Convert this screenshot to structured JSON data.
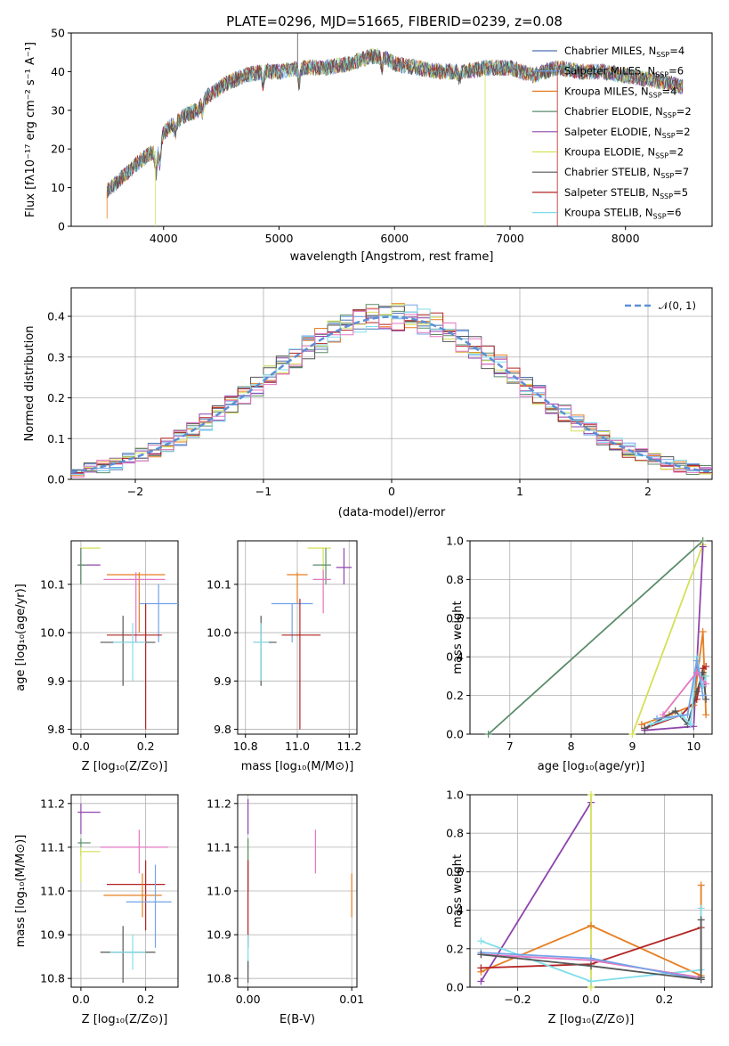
{
  "colors": {
    "chabrier_miles": "#4c72b0",
    "salpeter_miles": "#72a3e8",
    "kroupa_miles": "#e67e22",
    "chabrier_elodie": "#5b8c6a",
    "salpeter_elodie": "#8e44ad",
    "kroupa_elodie": "#d4e157",
    "chabrier_stelib": "#555555",
    "salpeter_stelib": "#b22222",
    "kroupa_stelib": "#80deea",
    "pink": "#e377c2",
    "gauss": "#5b8fd6"
  },
  "chart_data": [
    {
      "type": "line",
      "title": "PLATE=0296, MJD=51665, FIBERID=0239, z=0.08",
      "xlabel": "wavelength [Angstrom, rest frame]",
      "ylabel": "Flux [fλ10⁻¹⁷ erg cm⁻² s⁻¹ A⁻¹]",
      "xlim": [
        3200,
        8750
      ],
      "ylim": [
        0,
        50
      ],
      "xticks": [
        "4000",
        "5000",
        "6000",
        "7000",
        "8000"
      ],
      "yticks": [
        "0",
        "10",
        "20",
        "30",
        "40",
        "50"
      ],
      "legend": "top-right",
      "continuum": [
        [
          3510,
          9
        ],
        [
          3650,
          13
        ],
        [
          3800,
          17
        ],
        [
          3900,
          19
        ],
        [
          3950,
          20
        ],
        [
          4000,
          24
        ],
        [
          4100,
          27
        ],
        [
          4200,
          29
        ],
        [
          4300,
          30
        ],
        [
          4350,
          33
        ],
        [
          4450,
          35
        ],
        [
          4550,
          37
        ],
        [
          4700,
          39
        ],
        [
          4850,
          40
        ],
        [
          5000,
          40
        ],
        [
          5200,
          41
        ],
        [
          5400,
          41
        ],
        [
          5600,
          42
        ],
        [
          5800,
          44
        ],
        [
          5900,
          44
        ],
        [
          6000,
          42
        ],
        [
          6200,
          41
        ],
        [
          6400,
          40
        ],
        [
          6600,
          40
        ],
        [
          6800,
          41
        ],
        [
          7000,
          41
        ],
        [
          7200,
          39
        ],
        [
          7400,
          41
        ],
        [
          7600,
          40
        ],
        [
          7800,
          40
        ],
        [
          8000,
          39
        ],
        [
          8200,
          38
        ],
        [
          8400,
          37
        ],
        [
          8500,
          36
        ]
      ],
      "series": [
        {
          "name": "Chabrier MILES, N_SSP=4",
          "color_key": "chabrier_miles"
        },
        {
          "name": "Salpeter MILES, N_SSP=6",
          "color_key": "salpeter_miles"
        },
        {
          "name": "Kroupa MILES, N_SSP=4",
          "color_key": "kroupa_miles"
        },
        {
          "name": "Chabrier ELODIE, N_SSP=2",
          "color_key": "chabrier_elodie"
        },
        {
          "name": "Salpeter ELODIE, N_SSP=2",
          "color_key": "salpeter_elodie"
        },
        {
          "name": "Kroupa ELODIE, N_SSP=2",
          "color_key": "kroupa_elodie"
        },
        {
          "name": "Chabrier STELIB, N_SSP=7",
          "color_key": "chabrier_stelib"
        },
        {
          "name": "Salpeter STELIB, N_SSP=5",
          "color_key": "salpeter_stelib"
        },
        {
          "name": "Kroupa STELIB, N_SSP=6",
          "color_key": "kroupa_stelib"
        }
      ]
    },
    {
      "type": "bar",
      "xlabel": "(data-model)/error",
      "ylabel": "Normed distribution",
      "xlim": [
        -2.5,
        2.5
      ],
      "ylim": [
        0,
        0.47
      ],
      "xticks": [
        "−2",
        "−1",
        "0",
        "1",
        "2"
      ],
      "yticks": [
        "0.0",
        "0.1",
        "0.2",
        "0.3",
        "0.4"
      ],
      "legend": "top-right",
      "curve_label": "𝒩(0, 1)",
      "bin_width": 0.1
    },
    {
      "type": "scatter",
      "xlabel": "Z [log₁₀(Z/Z⊙)]",
      "ylabel": "age  [log₁₀(age/yr)]",
      "xlim": [
        -0.03,
        0.3
      ],
      "ylim": [
        9.79,
        10.19
      ],
      "xticks": [
        "0.0",
        "0.2"
      ],
      "yticks": [
        "9.8",
        "9.9",
        "10.0",
        "10.1"
      ],
      "points": [
        {
          "c": "kroupa_elodie",
          "x": 0.0,
          "xe": [
            0.0,
            0.06
          ],
          "y": 10.175,
          "ye": [
            10.1,
            10.175
          ]
        },
        {
          "c": "salpeter_elodie",
          "x": 0.0,
          "xe": [
            -0.01,
            0.06
          ],
          "y": 10.14,
          "ye": [
            10.1,
            10.175
          ]
        },
        {
          "c": "chabrier_elodie",
          "x": 0.0,
          "xe": [
            -0.01,
            0.02
          ],
          "y": 10.14,
          "ye": [
            10.1,
            10.175
          ]
        },
        {
          "c": "kroupa_miles",
          "x": 0.18,
          "xe": [
            0.08,
            0.26
          ],
          "y": 10.12,
          "ye": [
            10.0,
            10.125
          ]
        },
        {
          "c": "pink",
          "x": 0.17,
          "xe": [
            0.07,
            0.26
          ],
          "y": 10.11,
          "ye": [
            9.98,
            10.125
          ]
        },
        {
          "c": "salpeter_miles",
          "x": 0.24,
          "xe": [
            0.18,
            0.3
          ],
          "y": 10.06,
          "ye": [
            9.98,
            10.1
          ]
        },
        {
          "c": "salpeter_stelib",
          "x": 0.2,
          "xe": [
            0.08,
            0.25
          ],
          "y": 9.995,
          "ye": [
            9.8,
            10.06
          ]
        },
        {
          "c": "chabrier_stelib",
          "x": 0.13,
          "xe": [
            0.06,
            0.23
          ],
          "y": 9.98,
          "ye": [
            9.89,
            10.035
          ]
        },
        {
          "c": "kroupa_stelib",
          "x": 0.16,
          "xe": [
            0.1,
            0.2
          ],
          "y": 9.98,
          "ye": [
            9.9,
            10.02
          ]
        }
      ]
    },
    {
      "type": "scatter",
      "xlabel": "mass [log₁₀(M/M⊙)]",
      "xlim": [
        10.77,
        11.23
      ],
      "ylim": [
        9.79,
        10.19
      ],
      "xticks": [
        "10.8",
        "11.0",
        "11.2"
      ],
      "yticks": [
        "9.8",
        "9.9",
        "10.0",
        "10.1"
      ],
      "points": [
        {
          "c": "kroupa_elodie",
          "x": 11.1,
          "xe": [
            11.04,
            11.13
          ],
          "y": 10.175,
          "ye": [
            10.1,
            10.175
          ]
        },
        {
          "c": "chabrier_elodie",
          "x": 11.11,
          "xe": [
            11.06,
            11.13
          ],
          "y": 10.14,
          "ye": [
            10.1,
            10.175
          ]
        },
        {
          "c": "salpeter_elodie",
          "x": 11.18,
          "xe": [
            11.15,
            11.21
          ],
          "y": 10.135,
          "ye": [
            10.1,
            10.175
          ]
        },
        {
          "c": "kroupa_miles",
          "x": 11.0,
          "xe": [
            10.96,
            11.04
          ],
          "y": 10.12,
          "ye": [
            10.06,
            10.125
          ]
        },
        {
          "c": "pink",
          "x": 11.1,
          "xe": [
            11.06,
            11.13
          ],
          "y": 10.11,
          "ye": [
            10.04,
            10.13
          ]
        },
        {
          "c": "salpeter_miles",
          "x": 10.98,
          "xe": [
            10.9,
            11.06
          ],
          "y": 10.06,
          "ye": [
            9.98,
            10.06
          ]
        },
        {
          "c": "salpeter_stelib",
          "x": 11.01,
          "xe": [
            10.94,
            11.09
          ],
          "y": 9.995,
          "ye": [
            9.8,
            10.07
          ]
        },
        {
          "c": "chabrier_stelib",
          "x": 10.86,
          "xe": [
            10.83,
            10.92
          ],
          "y": 9.98,
          "ye": [
            9.89,
            10.035
          ]
        },
        {
          "c": "kroupa_stelib",
          "x": 10.86,
          "xe": [
            10.83,
            10.89
          ],
          "y": 9.98,
          "ye": [
            9.9,
            10.02
          ]
        }
      ]
    },
    {
      "type": "line",
      "xlabel": "age  [log₁₀(age/yr)]",
      "ylabel": "mass weight",
      "xlim": [
        6.35,
        10.3
      ],
      "ylim": [
        0,
        1
      ],
      "xticks": [
        "7",
        "8",
        "9",
        "10"
      ],
      "yticks": [
        "0.0",
        "0.2",
        "0.4",
        "0.6",
        "0.8",
        "1.0"
      ],
      "series": [
        {
          "c": "chabrier_elodie",
          "x": [
            6.65,
            10.15
          ],
          "y": [
            0.0,
            1.0
          ]
        },
        {
          "c": "kroupa_elodie",
          "x": [
            9.0,
            10.15
          ],
          "y": [
            0.0,
            0.98
          ]
        },
        {
          "c": "salpeter_elodie",
          "x": [
            9.2,
            10.0,
            10.15
          ],
          "y": [
            0.02,
            0.04,
            0.97
          ]
        },
        {
          "c": "kroupa_miles",
          "x": [
            9.15,
            9.6,
            10.0,
            10.15,
            10.2
          ],
          "y": [
            0.05,
            0.1,
            0.15,
            0.53,
            0.1
          ]
        },
        {
          "c": "salpeter_stelib",
          "x": [
            9.2,
            9.8,
            10.05,
            10.15,
            10.2
          ],
          "y": [
            0.03,
            0.1,
            0.18,
            0.34,
            0.35
          ]
        },
        {
          "c": "chabrier_stelib",
          "x": [
            9.2,
            9.7,
            9.9,
            10.05,
            10.15,
            10.2
          ],
          "y": [
            0.03,
            0.12,
            0.05,
            0.22,
            0.32,
            0.18
          ]
        },
        {
          "c": "kroupa_stelib",
          "x": [
            9.3,
            9.8,
            9.95,
            10.05,
            10.15,
            10.2
          ],
          "y": [
            0.05,
            0.1,
            0.05,
            0.4,
            0.25,
            0.3
          ]
        },
        {
          "c": "salpeter_miles",
          "x": [
            9.4,
            9.9,
            10.05,
            10.15
          ],
          "y": [
            0.08,
            0.1,
            0.38,
            0.2
          ]
        },
        {
          "c": "pink",
          "x": [
            9.5,
            10.05,
            10.2
          ],
          "y": [
            0.1,
            0.32,
            0.26
          ]
        }
      ]
    },
    {
      "type": "scatter",
      "xlabel": "Z [log₁₀(Z/Z⊙)]",
      "ylabel": "mass [log₁₀(M/M⊙)]",
      "xlim": [
        -0.03,
        0.3
      ],
      "ylim": [
        10.78,
        11.22
      ],
      "xticks": [
        "0.0",
        "0.2"
      ],
      "yticks": [
        "10.8",
        "10.9",
        "11.0",
        "11.1",
        "11.2"
      ],
      "points": [
        {
          "c": "salpeter_elodie",
          "x": 0.0,
          "xe": [
            -0.01,
            0.06
          ],
          "y": 11.18,
          "ye": [
            11.13,
            11.2
          ]
        },
        {
          "c": "chabrier_elodie",
          "x": 0.0,
          "xe": [
            -0.01,
            0.03
          ],
          "y": 11.11,
          "ye": [
            11.08,
            11.12
          ]
        },
        {
          "c": "kroupa_elodie",
          "x": 0.0,
          "xe": [
            0.0,
            0.06
          ],
          "y": 11.09,
          "ye": [
            11.02,
            11.1
          ]
        },
        {
          "c": "pink",
          "x": 0.18,
          "xe": [
            0.06,
            0.27
          ],
          "y": 11.1,
          "ye": [
            11.04,
            11.14
          ]
        },
        {
          "c": "salpeter_stelib",
          "x": 0.2,
          "xe": [
            0.08,
            0.26
          ],
          "y": 11.015,
          "ye": [
            10.91,
            11.07
          ]
        },
        {
          "c": "kroupa_miles",
          "x": 0.19,
          "xe": [
            0.07,
            0.25
          ],
          "y": 10.99,
          "ye": [
            10.94,
            11.04
          ]
        },
        {
          "c": "salpeter_miles",
          "x": 0.23,
          "xe": [
            0.14,
            0.28
          ],
          "y": 10.975,
          "ye": [
            10.87,
            11.06
          ]
        },
        {
          "c": "chabrier_stelib",
          "x": 0.13,
          "xe": [
            0.06,
            0.23
          ],
          "y": 10.86,
          "ye": [
            10.79,
            10.92
          ]
        },
        {
          "c": "kroupa_stelib",
          "x": 0.16,
          "xe": [
            0.09,
            0.2
          ],
          "y": 10.86,
          "ye": [
            10.82,
            10.9
          ]
        }
      ]
    },
    {
      "type": "scatter",
      "xlabel": "E(B-V)",
      "xlim": [
        -0.001,
        0.0105
      ],
      "ylim": [
        10.78,
        11.22
      ],
      "xticks": [
        "0.00",
        "0.01"
      ],
      "yticks": [
        "10.8",
        "10.9",
        "11.0",
        "11.1",
        "11.2"
      ],
      "vlines": [
        {
          "c": "salpeter_elodie",
          "x": 0.0,
          "y": [
            11.13,
            11.21
          ]
        },
        {
          "c": "kroupa_elodie",
          "x": 0.0,
          "y": [
            11.0,
            11.12
          ]
        },
        {
          "c": "chabrier_elodie",
          "x": 0.0,
          "y": [
            11.0,
            11.12
          ]
        },
        {
          "c": "salpeter_stelib",
          "x": 0.0,
          "y": [
            10.87,
            11.07
          ]
        },
        {
          "c": "kroupa_stelib",
          "x": 0.0,
          "y": [
            10.82,
            10.9
          ]
        },
        {
          "c": "chabrier_stelib",
          "x": 0.0,
          "y": [
            10.79,
            10.84
          ]
        },
        {
          "c": "pink",
          "x": 0.0065,
          "y": [
            11.04,
            11.14
          ]
        },
        {
          "c": "kroupa_miles",
          "x": 0.01,
          "y": [
            10.94,
            11.04
          ]
        }
      ]
    },
    {
      "type": "line",
      "xlabel": "Z [log₁₀(Z/Z⊙)]",
      "ylabel": "mass weight",
      "xlim": [
        -0.33,
        0.33
      ],
      "ylim": [
        0,
        1
      ],
      "xticks": [
        "−0.2",
        "0.0",
        "0.2"
      ],
      "yticks": [
        "0.0",
        "0.2",
        "0.4",
        "0.6",
        "0.8",
        "1.0"
      ],
      "series": [
        {
          "c": "salpeter_elodie",
          "x": [
            -0.3,
            0.0
          ],
          "y": [
            0.03,
            0.96
          ]
        },
        {
          "c": "kroupa_elodie",
          "x": [
            0.0,
            0.0
          ],
          "y": [
            0.0,
            1.0
          ]
        },
        {
          "c": "kroupa_miles",
          "x": [
            -0.3,
            0.0,
            0.3
          ],
          "y": [
            0.08,
            0.32,
            0.06
          ]
        },
        {
          "c": "salpeter_stelib",
          "x": [
            -0.3,
            0.0,
            0.3
          ],
          "y": [
            0.1,
            0.12,
            0.31
          ]
        },
        {
          "c": "kroupa_stelib",
          "x": [
            -0.3,
            0.0,
            0.3
          ],
          "y": [
            0.24,
            0.03,
            0.09
          ]
        },
        {
          "c": "pink",
          "x": [
            -0.3,
            0.0,
            0.3
          ],
          "y": [
            0.17,
            0.14,
            0.05
          ]
        },
        {
          "c": "salpeter_miles",
          "x": [
            -0.3,
            0.0,
            0.3
          ],
          "y": [
            0.18,
            0.15,
            0.04
          ]
        },
        {
          "c": "chabrier_stelib",
          "x": [
            -0.3,
            0.0,
            0.3
          ],
          "y": [
            0.17,
            0.11,
            0.04
          ]
        },
        {
          "c": "kroupa_miles",
          "x": [
            0.3,
            0.3
          ],
          "y": [
            0.05,
            0.53
          ]
        },
        {
          "c": "kroupa_stelib",
          "x": [
            0.3,
            0.3
          ],
          "y": [
            0.05,
            0.41
          ]
        },
        {
          "c": "chabrier_stelib",
          "x": [
            0.3,
            0.3
          ],
          "y": [
            0.05,
            0.35
          ]
        }
      ]
    }
  ]
}
